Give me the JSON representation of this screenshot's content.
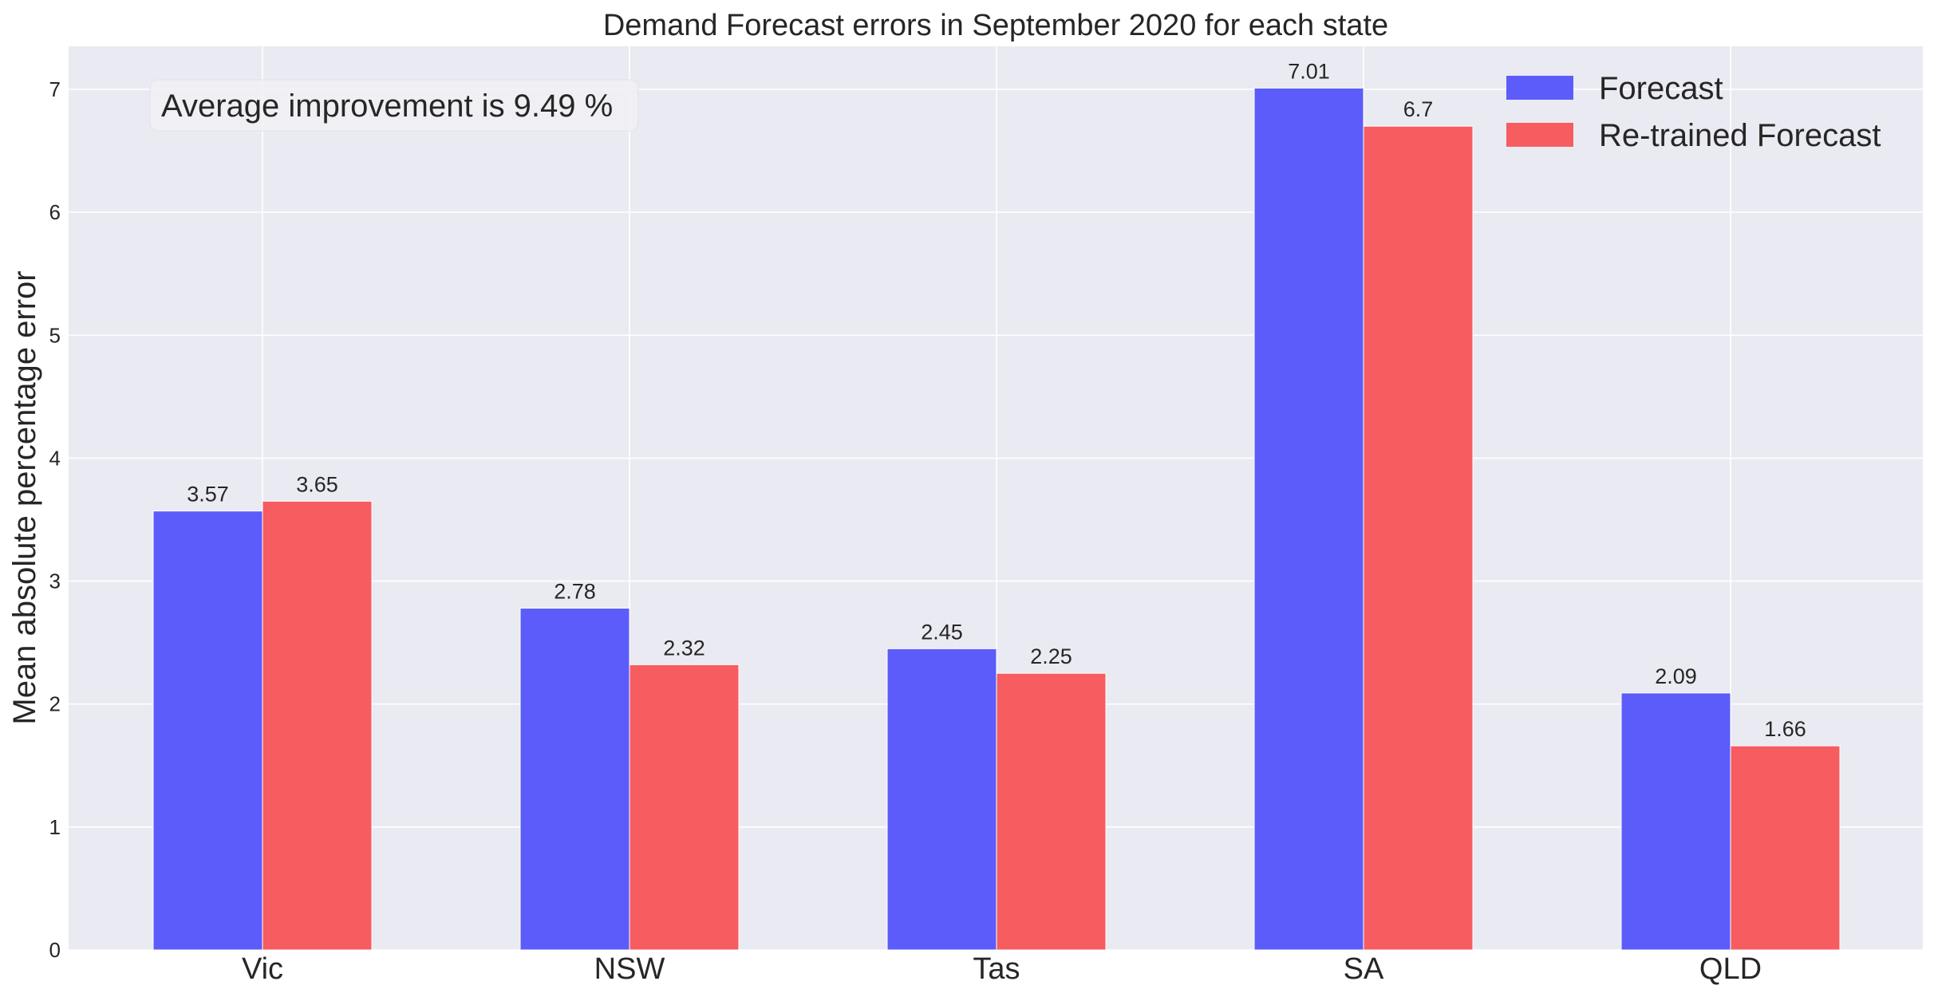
{
  "chart_data": {
    "type": "bar",
    "title": "Demand Forecast errors in September 2020 for each state",
    "xlabel": "",
    "ylabel": "Mean absolute percentage error",
    "categories": [
      "Vic",
      "NSW",
      "Tas",
      "SA",
      "QLD"
    ],
    "series": [
      {
        "name": "Forecast",
        "color": "#5c5cfa",
        "values": [
          3.57,
          2.78,
          2.45,
          7.01,
          2.09
        ]
      },
      {
        "name": "Re-trained Forecast",
        "color": "#f65c60",
        "values": [
          3.65,
          2.32,
          2.25,
          6.7,
          1.66
        ]
      }
    ],
    "data_labels": [
      [
        "3.57",
        "2.78",
        "2.45",
        "7.01",
        "2.09"
      ],
      [
        "3.65",
        "2.32",
        "2.25",
        "6.7",
        "1.66"
      ]
    ],
    "ylim": [
      0,
      7.35
    ],
    "yticks": [
      0,
      1,
      2,
      3,
      4,
      5,
      6,
      7
    ],
    "grid": true,
    "legend_position": "top-right",
    "annotation": "Average improvement is 9.49 %",
    "colors": {
      "plot_background": "#eaeaf2",
      "grid": "#ffffff",
      "text": "#262626"
    }
  }
}
